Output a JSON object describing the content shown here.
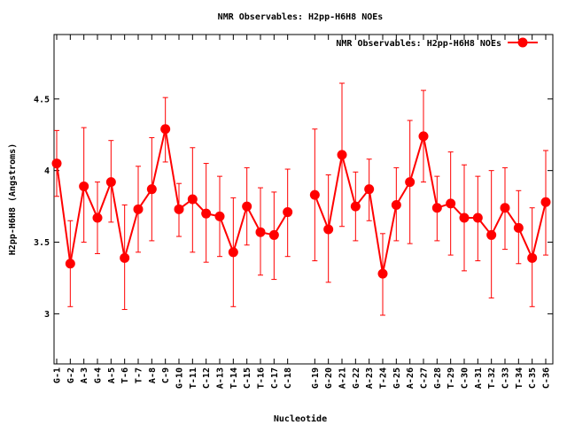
{
  "chart_data": {
    "type": "line",
    "title": "NMR Observables: H2pp-H6H8 NOEs",
    "xlabel": "Nucleotide",
    "ylabel": "H2pp-H6H8 (Angstroms)",
    "ylim": [
      2.65,
      4.95
    ],
    "yticks": [
      "3",
      "3.5",
      "4",
      "4.5"
    ],
    "grid": false,
    "legend_position": "top-right",
    "series": [
      {
        "name": "NMR Observables: H2pp-H6H8 NOEs",
        "color": "#ff0000",
        "marker": "circle",
        "error_bars": true
      }
    ],
    "segments": [
      [
        {
          "x": "G-1",
          "y": 4.05,
          "lo": 3.82,
          "hi": 4.28
        },
        {
          "x": "G-2",
          "y": 3.35,
          "lo": 3.05,
          "hi": 3.65
        },
        {
          "x": "A-3",
          "y": 3.89,
          "lo": 3.5,
          "hi": 4.3
        },
        {
          "x": "G-4",
          "y": 3.67,
          "lo": 3.42,
          "hi": 3.92
        },
        {
          "x": "A-5",
          "y": 3.92,
          "lo": 3.64,
          "hi": 4.21
        },
        {
          "x": "T-6",
          "y": 3.39,
          "lo": 3.03,
          "hi": 3.76
        },
        {
          "x": "T-7",
          "y": 3.73,
          "lo": 3.43,
          "hi": 4.03
        },
        {
          "x": "A-8",
          "y": 3.87,
          "lo": 3.51,
          "hi": 4.23
        },
        {
          "x": "C-9",
          "y": 4.29,
          "lo": 4.06,
          "hi": 4.51
        },
        {
          "x": "G-10",
          "y": 3.73,
          "lo": 3.54,
          "hi": 3.91
        },
        {
          "x": "T-11",
          "y": 3.8,
          "lo": 3.43,
          "hi": 4.16
        },
        {
          "x": "C-12",
          "y": 3.7,
          "lo": 3.36,
          "hi": 4.05
        },
        {
          "x": "A-13",
          "y": 3.68,
          "lo": 3.4,
          "hi": 3.96
        },
        {
          "x": "T-14",
          "y": 3.43,
          "lo": 3.05,
          "hi": 3.81
        },
        {
          "x": "C-15",
          "y": 3.75,
          "lo": 3.48,
          "hi": 4.02
        },
        {
          "x": "T-16",
          "y": 3.57,
          "lo": 3.27,
          "hi": 3.88
        },
        {
          "x": "C-17",
          "y": 3.55,
          "lo": 3.24,
          "hi": 3.85
        },
        {
          "x": "C-18",
          "y": 3.71,
          "lo": 3.4,
          "hi": 4.01
        }
      ],
      [
        {
          "x": "G-19",
          "y": 3.83,
          "lo": 3.37,
          "hi": 4.29
        },
        {
          "x": "G-20",
          "y": 3.59,
          "lo": 3.22,
          "hi": 3.97
        },
        {
          "x": "A-21",
          "y": 4.11,
          "lo": 3.61,
          "hi": 4.61
        },
        {
          "x": "G-22",
          "y": 3.75,
          "lo": 3.51,
          "hi": 3.99
        },
        {
          "x": "A-23",
          "y": 3.87,
          "lo": 3.65,
          "hi": 4.08
        },
        {
          "x": "T-24",
          "y": 3.28,
          "lo": 2.99,
          "hi": 3.56
        },
        {
          "x": "G-25",
          "y": 3.76,
          "lo": 3.51,
          "hi": 4.02
        },
        {
          "x": "A-26",
          "y": 3.92,
          "lo": 3.49,
          "hi": 4.35
        },
        {
          "x": "C-27",
          "y": 4.24,
          "lo": 3.92,
          "hi": 4.56
        },
        {
          "x": "G-28",
          "y": 3.74,
          "lo": 3.51,
          "hi": 3.96
        },
        {
          "x": "T-29",
          "y": 3.77,
          "lo": 3.41,
          "hi": 4.13
        },
        {
          "x": "C-30",
          "y": 3.67,
          "lo": 3.3,
          "hi": 4.04
        },
        {
          "x": "A-31",
          "y": 3.67,
          "lo": 3.37,
          "hi": 3.96
        },
        {
          "x": "T-32",
          "y": 3.55,
          "lo": 3.11,
          "hi": 4.0
        },
        {
          "x": "C-33",
          "y": 3.74,
          "lo": 3.45,
          "hi": 4.02
        },
        {
          "x": "T-34",
          "y": 3.6,
          "lo": 3.35,
          "hi": 3.86
        },
        {
          "x": "C-35",
          "y": 3.39,
          "lo": 3.05,
          "hi": 3.74
        },
        {
          "x": "C-36",
          "y": 3.78,
          "lo": 3.41,
          "hi": 4.14
        }
      ]
    ]
  }
}
